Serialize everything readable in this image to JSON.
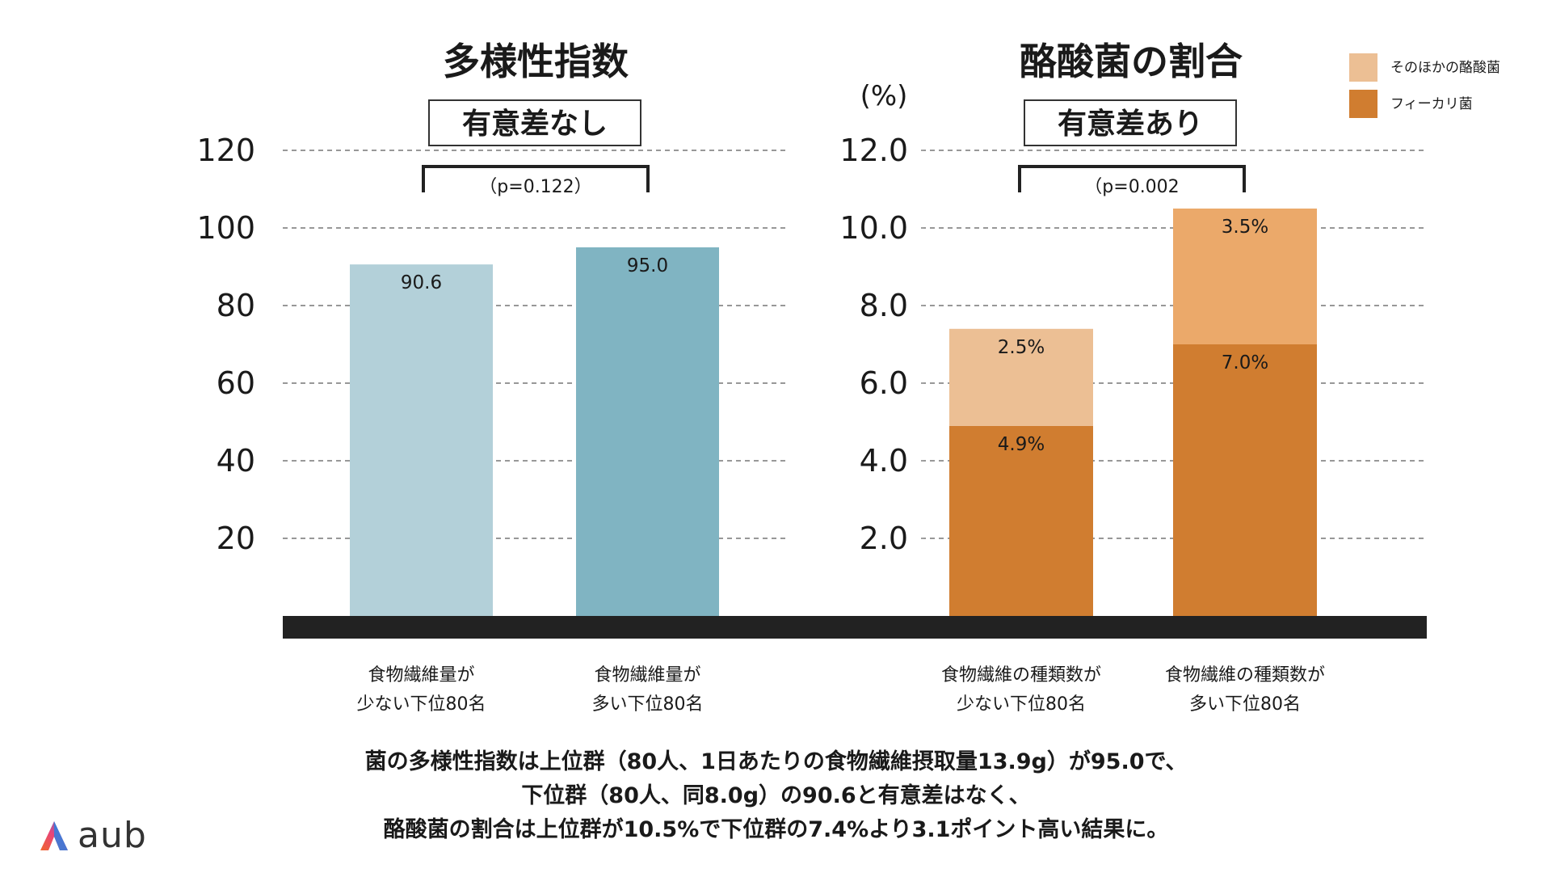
{
  "colors": {
    "bar_low_diversity": "#b3d0d9",
    "bar_high_diversity": "#80b4c2",
    "faecali": "#d07d30",
    "other_low": "#ecbf94",
    "other_high": "#eba96a",
    "baseline": "#222222"
  },
  "legend": [
    {
      "label": "そのほかの酪酸菌",
      "color": "#ecbf94"
    },
    {
      "label": "フィーカリ菌",
      "color": "#d07d30"
    }
  ],
  "chart_data": [
    {
      "type": "bar",
      "title": "多様性指数",
      "significance": "有意差なし",
      "p_value": "（p=0.122）",
      "unit_label": "",
      "ylim": [
        0,
        120
      ],
      "yticks": [
        "120",
        "100",
        "80",
        "60",
        "40",
        "20"
      ],
      "ytick_values": [
        120,
        100,
        80,
        60,
        40,
        20
      ],
      "categories": [
        [
          "食物繊維量が",
          "少ない下位80名"
        ],
        [
          "食物繊維量が",
          "多い下位80名"
        ]
      ],
      "values": [
        90.6,
        95.0
      ],
      "value_labels": [
        "90.6",
        "95.0"
      ]
    },
    {
      "type": "bar",
      "stacked": true,
      "title": "酪酸菌の割合",
      "significance": "有意差あり",
      "p_value": "（p=0.002",
      "unit_label": "(%)",
      "ylim": [
        0,
        12.0
      ],
      "yticks": [
        "12.0",
        "10.0",
        "8.0",
        "6.0",
        "4.0",
        "2.0"
      ],
      "ytick_values": [
        12.0,
        10.0,
        8.0,
        6.0,
        4.0,
        2.0
      ],
      "categories": [
        [
          "食物繊維の種類数が",
          "少ない下位80名"
        ],
        [
          "食物繊維の種類数が",
          "多い下位80名"
        ]
      ],
      "series": [
        {
          "name": "フィーカリ菌",
          "values": [
            4.9,
            7.0
          ],
          "labels": [
            "4.9%",
            "7.0%"
          ]
        },
        {
          "name": "そのほかの酪酸菌",
          "values": [
            2.5,
            3.5
          ],
          "labels": [
            "2.5%",
            "3.5%"
          ]
        }
      ]
    }
  ],
  "caption": [
    "菌の多様性指数は上位群（80人、1日あたりの食物繊維摂取量13.9g）が95.0で、",
    "下位群（80人、同8.0g）の90.6と有意差はなく、",
    "酪酸菌の割合は上位群が10.5%で下位群の7.4%より3.1ポイント高い結果に。"
  ],
  "logo": {
    "text": "aub",
    "icon": "aub-logo-icon"
  }
}
